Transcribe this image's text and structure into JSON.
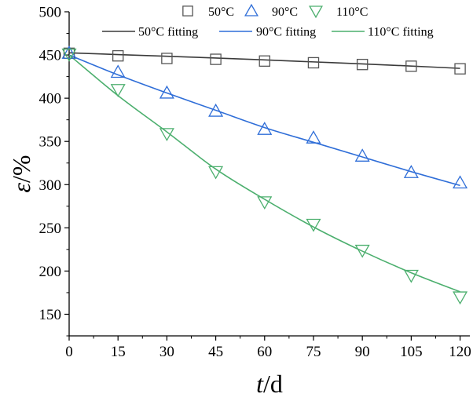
{
  "chart_data": {
    "type": "scatter",
    "xlabel_var": "t",
    "xlabel_unit": "/d",
    "ylabel_var": "ε",
    "ylabel_unit": "/%",
    "xlim": [
      0,
      123
    ],
    "ylim": [
      125,
      500
    ],
    "xticks": [
      0,
      15,
      30,
      45,
      60,
      75,
      90,
      105,
      120
    ],
    "yticks": [
      150,
      200,
      250,
      300,
      350,
      400,
      450,
      500
    ],
    "grid": false,
    "legend_position": "top",
    "series": [
      {
        "name": "50°C",
        "marker": "square",
        "color": "#555555",
        "x": [
          0,
          15,
          30,
          45,
          60,
          75,
          90,
          105,
          120
        ],
        "y": [
          452,
          449,
          446,
          445,
          443,
          441,
          439,
          437,
          434
        ]
      },
      {
        "name": "90°C",
        "marker": "triangle-up",
        "color": "#2f6ed8",
        "x": [
          0,
          15,
          30,
          45,
          60,
          75,
          90,
          105,
          120
        ],
        "y": [
          452,
          430,
          406,
          385,
          364,
          354,
          333,
          314,
          302
        ]
      },
      {
        "name": "110°C",
        "marker": "triangle-down",
        "color": "#4caf6e",
        "x": [
          0,
          15,
          30,
          45,
          60,
          75,
          90,
          105,
          120
        ],
        "y": [
          451,
          410,
          359,
          315,
          280,
          254,
          224,
          195,
          170
        ]
      }
    ],
    "fits": [
      {
        "name": "50°C fitting",
        "color": "#3a3a3a",
        "x": [
          0,
          15,
          30,
          45,
          60,
          75,
          90,
          105,
          120
        ],
        "y": [
          452.5,
          450.5,
          448.5,
          446.5,
          444.3,
          442.0,
          439.7,
          437.2,
          434.5
        ]
      },
      {
        "name": "90°C fitting",
        "color": "#2f6ed8",
        "x": [
          0,
          15,
          30,
          45,
          60,
          75,
          90,
          105,
          120
        ],
        "y": [
          450,
          427,
          406,
          386,
          366,
          349,
          332,
          315,
          299
        ]
      },
      {
        "name": "110°C fitting",
        "color": "#4caf6e",
        "x": [
          0,
          15,
          30,
          45,
          60,
          75,
          90,
          105,
          120
        ],
        "y": [
          450,
          403,
          361,
          318,
          283,
          251,
          223,
          198,
          176
        ]
      }
    ]
  }
}
